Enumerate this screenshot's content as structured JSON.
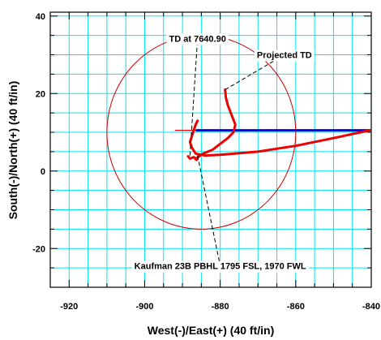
{
  "chart_data": {
    "type": "line",
    "xlabel": "West(-)/East(+) (40 ft/in)",
    "ylabel": "South(-)/North(+) (40 ft/in)",
    "xlim": [
      -925,
      -840
    ],
    "ylim": [
      -30,
      41
    ],
    "x_ticks": [
      -920,
      -900,
      -880,
      -860,
      -840
    ],
    "x_tick_labels": [
      "-920",
      "-900",
      "-880",
      "-860",
      "-840"
    ],
    "y_ticks": [
      -20,
      0,
      20,
      40
    ],
    "y_tick_labels": [
      "-20",
      "0",
      "20",
      "40"
    ],
    "grid": true,
    "colors": {
      "grid": "#00e5ee",
      "wellpath": "#ee0000",
      "circle": "#cc0000",
      "plan_line": "#0000ee",
      "frame": "#000000"
    },
    "circle": {
      "center": [
        -885,
        10
      ],
      "radius": 25
    },
    "series": [
      {
        "points": [
          [
            -838,
            11
          ],
          [
            -850,
            8.5
          ],
          [
            -860,
            6.5
          ],
          [
            -870,
            5
          ],
          [
            -880,
            4.2
          ],
          [
            -884,
            4
          ],
          [
            -886.5,
            4.5
          ],
          [
            -887.5,
            6
          ],
          [
            -888,
            7.5
          ],
          [
            -887.5,
            9
          ],
          [
            -887,
            10.5
          ],
          [
            -886.5,
            12
          ],
          [
            -886,
            13
          ]
        ]
      },
      {
        "points": [
          [
            -886.5,
            3
          ],
          [
            -886,
            3.5
          ],
          [
            -884.5,
            4.5
          ],
          [
            -882,
            5.5
          ],
          [
            -880,
            7
          ],
          [
            -878,
            8.5
          ],
          [
            -876.5,
            10
          ],
          [
            -876,
            12
          ],
          [
            -877,
            14.5
          ],
          [
            -878,
            17
          ],
          [
            -878.5,
            19
          ],
          [
            -878.7,
            21
          ]
        ]
      },
      {
        "points": [
          [
            -888.5,
            3.8
          ],
          [
            -888,
            3.2
          ],
          [
            -887,
            3.6
          ],
          [
            -886.2,
            2.9
          ],
          [
            -886,
            3.3
          ]
        ]
      }
    ],
    "plan_line": {
      "x": [
        -886.5,
        -840
      ],
      "y": 10.5
    },
    "annotations": [
      {
        "text": "TD at 7640.90",
        "anchor": [
          -888,
          4
        ],
        "label_at": [
          -886,
          34.2
        ]
      },
      {
        "text": "Projected TD",
        "anchor": [
          -878.7,
          21
        ],
        "label_at": [
          -863,
          30
        ]
      },
      {
        "text": "Kaufman 23B PBHL 1795 FSL, 1970 FWL",
        "anchor": [
          -886,
          4
        ],
        "label_at": [
          -880,
          -24.5
        ]
      }
    ]
  }
}
